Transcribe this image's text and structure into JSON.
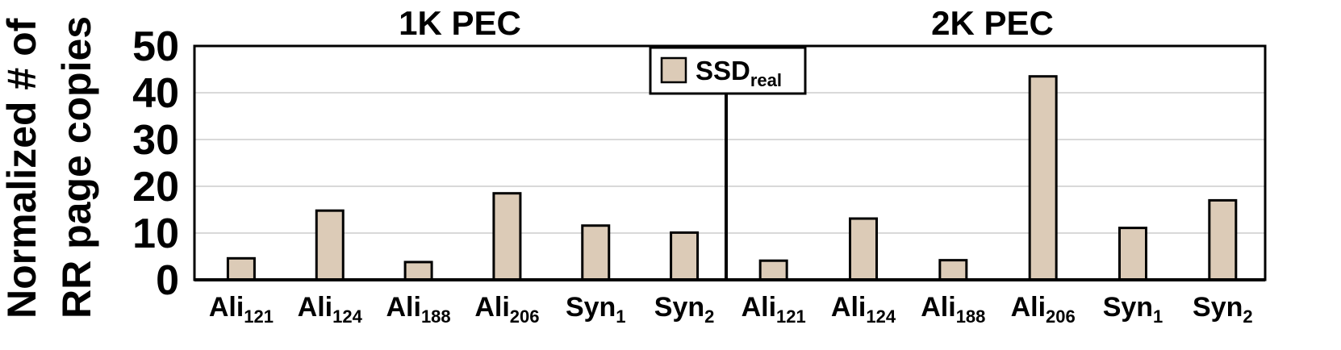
{
  "chart_data": {
    "type": "bar",
    "ylabel_lines": [
      "Normalized # of",
      "RR page copies"
    ],
    "ylim": [
      0,
      50
    ],
    "yticks": [
      "0",
      "10",
      "20",
      "30",
      "40",
      "50"
    ],
    "grid": true,
    "legend_placement": "top-center",
    "bar_color": "#dccbb7",
    "legend": {
      "label": "SSD",
      "sub": "real"
    },
    "panels": [
      {
        "title": "1K PEC",
        "categories": [
          {
            "base": "Ali",
            "sub": "121"
          },
          {
            "base": "Ali",
            "sub": "124"
          },
          {
            "base": "Ali",
            "sub": "188"
          },
          {
            "base": "Ali",
            "sub": "206"
          },
          {
            "base": "Syn",
            "sub": "1"
          },
          {
            "base": "Syn",
            "sub": "2"
          }
        ],
        "values": [
          4.6,
          14.8,
          3.8,
          18.5,
          11.6,
          10.1
        ]
      },
      {
        "title": "2K PEC",
        "categories": [
          {
            "base": "Ali",
            "sub": "121"
          },
          {
            "base": "Ali",
            "sub": "124"
          },
          {
            "base": "Ali",
            "sub": "188"
          },
          {
            "base": "Ali",
            "sub": "206"
          },
          {
            "base": "Syn",
            "sub": "1"
          },
          {
            "base": "Syn",
            "sub": "2"
          }
        ],
        "values": [
          4.1,
          13.1,
          4.2,
          43.5,
          11.1,
          17.0
        ]
      }
    ]
  }
}
